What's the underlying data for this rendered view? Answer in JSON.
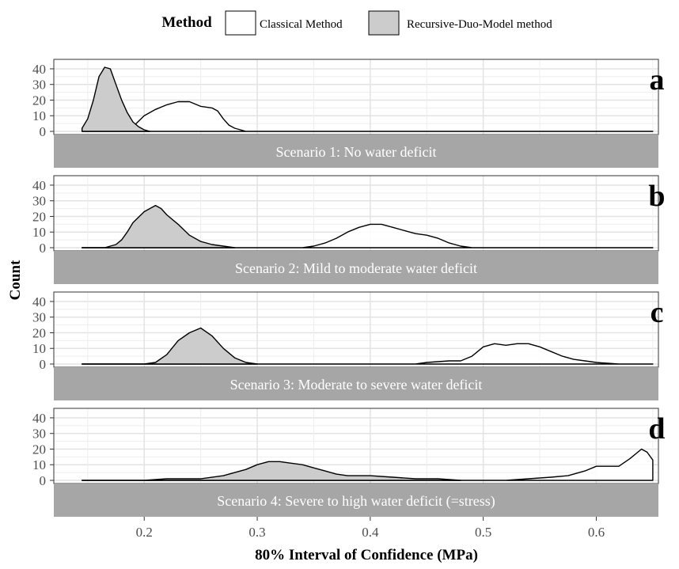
{
  "chart_data": {
    "type": "area",
    "legend": {
      "title": "Method",
      "placement": "top",
      "entries": [
        {
          "label": "Classical Method",
          "fill": "#ffffff"
        },
        {
          "label": "Recursive-Duo-Model method",
          "fill": "#cccccc"
        }
      ]
    },
    "xlabel": "80% Interval of Confidence (MPa)",
    "ylabel": "Count",
    "xlim": [
      0.12,
      0.655
    ],
    "ylim": [
      0,
      42
    ],
    "x_ticks": [
      0.2,
      0.3,
      0.4,
      0.5,
      0.6
    ],
    "x_tick_labels": [
      "0.2",
      "0.3",
      "0.4",
      "0.5",
      "0.6"
    ],
    "y_ticks": [
      0,
      10,
      20,
      30,
      40
    ],
    "y_tick_labels": [
      "0",
      "10",
      "20",
      "30",
      "40"
    ],
    "grid": true,
    "colors": {
      "classical_fill": "#ffffff",
      "rdm_fill": "#cccccc",
      "strip_fill": "#a6a6a6",
      "strip_text": "#ffffff",
      "grid": "#e3e3e3",
      "line": "#000000"
    },
    "panels": [
      {
        "tag": "a",
        "strip": "Scenario 1: No water deficit",
        "series": [
          {
            "name": "Classical Method",
            "points": [
              [
                0.145,
                0
              ],
              [
                0.17,
                0
              ],
              [
                0.185,
                1
              ],
              [
                0.19,
                3
              ],
              [
                0.2,
                10
              ],
              [
                0.21,
                14
              ],
              [
                0.22,
                17
              ],
              [
                0.23,
                19
              ],
              [
                0.24,
                19
              ],
              [
                0.25,
                16
              ],
              [
                0.26,
                15
              ],
              [
                0.265,
                13
              ],
              [
                0.27,
                8
              ],
              [
                0.275,
                4
              ],
              [
                0.28,
                2
              ],
              [
                0.285,
                1
              ],
              [
                0.29,
                0
              ],
              [
                0.3,
                0
              ],
              [
                0.5,
                0
              ],
              [
                0.65,
                0
              ]
            ]
          },
          {
            "name": "Recursive-Duo-Model method",
            "points": [
              [
                0.145,
                2
              ],
              [
                0.15,
                8
              ],
              [
                0.155,
                20
              ],
              [
                0.16,
                35
              ],
              [
                0.165,
                41
              ],
              [
                0.17,
                40
              ],
              [
                0.175,
                30
              ],
              [
                0.18,
                20
              ],
              [
                0.185,
                12
              ],
              [
                0.19,
                6
              ],
              [
                0.195,
                3
              ],
              [
                0.2,
                1
              ],
              [
                0.205,
                0
              ]
            ]
          }
        ]
      },
      {
        "tag": "b",
        "strip": "Scenario 2: Mild to moderate water deficit",
        "series": [
          {
            "name": "Classical Method",
            "points": [
              [
                0.145,
                0
              ],
              [
                0.34,
                0
              ],
              [
                0.35,
                1
              ],
              [
                0.36,
                3
              ],
              [
                0.37,
                6
              ],
              [
                0.38,
                10
              ],
              [
                0.39,
                13
              ],
              [
                0.4,
                15
              ],
              [
                0.41,
                15
              ],
              [
                0.42,
                13
              ],
              [
                0.43,
                11
              ],
              [
                0.44,
                9
              ],
              [
                0.45,
                8
              ],
              [
                0.46,
                6
              ],
              [
                0.47,
                3
              ],
              [
                0.48,
                1
              ],
              [
                0.49,
                0
              ],
              [
                0.65,
                0
              ]
            ]
          },
          {
            "name": "Recursive-Duo-Model method",
            "points": [
              [
                0.145,
                0
              ],
              [
                0.165,
                0
              ],
              [
                0.175,
                2
              ],
              [
                0.18,
                5
              ],
              [
                0.185,
                10
              ],
              [
                0.19,
                16
              ],
              [
                0.2,
                23
              ],
              [
                0.21,
                27
              ],
              [
                0.215,
                25
              ],
              [
                0.22,
                21
              ],
              [
                0.23,
                15
              ],
              [
                0.24,
                8
              ],
              [
                0.25,
                4
              ],
              [
                0.26,
                2
              ],
              [
                0.27,
                1
              ],
              [
                0.28,
                0
              ]
            ]
          }
        ]
      },
      {
        "tag": "c",
        "strip": "Scenario 3: Moderate to severe water deficit",
        "series": [
          {
            "name": "Classical Method",
            "points": [
              [
                0.145,
                0
              ],
              [
                0.44,
                0
              ],
              [
                0.45,
                1
              ],
              [
                0.47,
                2
              ],
              [
                0.48,
                2
              ],
              [
                0.49,
                5
              ],
              [
                0.5,
                11
              ],
              [
                0.51,
                13
              ],
              [
                0.52,
                12
              ],
              [
                0.53,
                13
              ],
              [
                0.54,
                13
              ],
              [
                0.55,
                11
              ],
              [
                0.56,
                8
              ],
              [
                0.57,
                5
              ],
              [
                0.58,
                3
              ],
              [
                0.59,
                2
              ],
              [
                0.6,
                1
              ],
              [
                0.62,
                0
              ],
              [
                0.65,
                0
              ]
            ]
          },
          {
            "name": "Recursive-Duo-Model method",
            "points": [
              [
                0.145,
                0
              ],
              [
                0.2,
                0
              ],
              [
                0.21,
                1
              ],
              [
                0.22,
                6
              ],
              [
                0.23,
                15
              ],
              [
                0.24,
                20
              ],
              [
                0.25,
                23
              ],
              [
                0.26,
                18
              ],
              [
                0.27,
                10
              ],
              [
                0.28,
                4
              ],
              [
                0.29,
                1
              ],
              [
                0.3,
                0
              ]
            ]
          }
        ]
      },
      {
        "tag": "d",
        "strip": "Scenario 4: Severe to high water deficit (=stress)",
        "series": [
          {
            "name": "Classical Method",
            "points": [
              [
                0.145,
                0
              ],
              [
                0.5,
                0
              ],
              [
                0.52,
                0
              ],
              [
                0.54,
                1
              ],
              [
                0.56,
                2
              ],
              [
                0.575,
                3
              ],
              [
                0.59,
                6
              ],
              [
                0.6,
                9
              ],
              [
                0.62,
                9
              ],
              [
                0.63,
                14
              ],
              [
                0.64,
                20
              ],
              [
                0.645,
                18
              ],
              [
                0.65,
                13
              ]
            ]
          },
          {
            "name": "Recursive-Duo-Model method",
            "points": [
              [
                0.145,
                0
              ],
              [
                0.2,
                0
              ],
              [
                0.22,
                1
              ],
              [
                0.25,
                1
              ],
              [
                0.27,
                3
              ],
              [
                0.29,
                7
              ],
              [
                0.3,
                10
              ],
              [
                0.31,
                12
              ],
              [
                0.32,
                12
              ],
              [
                0.33,
                11
              ],
              [
                0.34,
                10
              ],
              [
                0.35,
                8
              ],
              [
                0.36,
                6
              ],
              [
                0.37,
                4
              ],
              [
                0.38,
                3
              ],
              [
                0.4,
                3
              ],
              [
                0.42,
                2
              ],
              [
                0.44,
                1
              ],
              [
                0.46,
                1
              ],
              [
                0.48,
                0
              ]
            ]
          }
        ]
      }
    ]
  }
}
